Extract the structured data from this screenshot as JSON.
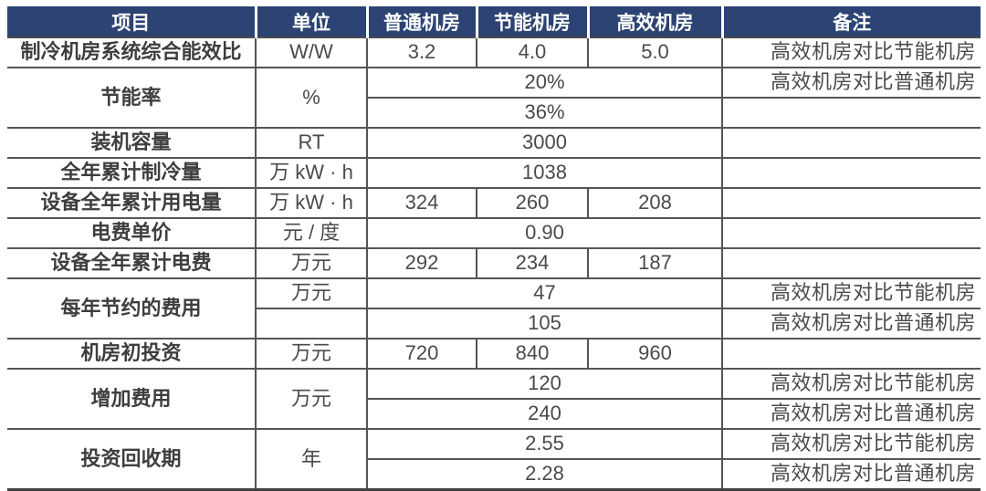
{
  "colors": {
    "header_bg": "#2c4373",
    "header_text": "#ffffff",
    "body_text": "#4a4a4a",
    "border": "#555555"
  },
  "table": {
    "columns": [
      "项目",
      "单位",
      "普通机房",
      "节能机房",
      "高效机房",
      "备注"
    ],
    "groups": [
      {
        "item": "制冷机房系统综合能效比",
        "unit": "W/W",
        "values": [
          "3.2",
          "4.0",
          "5.0"
        ],
        "remark": "高效机房对比节能机房"
      },
      {
        "item": "节能率",
        "unit": "%",
        "subrows": [
          {
            "value": "20%",
            "remark": "高效机房对比普通机房"
          },
          {
            "value": "36%",
            "remark": ""
          }
        ]
      },
      {
        "item": "装机容量",
        "unit": "RT",
        "value": "3000",
        "remark": ""
      },
      {
        "item": "全年累计制冷量",
        "unit": "万 kW · h",
        "value": "1038",
        "remark": ""
      },
      {
        "item": "设备全年累计用电量",
        "unit": "万 kW · h",
        "values": [
          "324",
          "260",
          "208"
        ],
        "remark": ""
      },
      {
        "item": "电费单价",
        "unit": "元 / 度",
        "value": "0.90",
        "remark": ""
      },
      {
        "item": "设备全年累计电费",
        "unit": "万元",
        "values": [
          "292",
          "234",
          "187"
        ],
        "remark": ""
      },
      {
        "item": "每年节约的费用",
        "subrows": [
          {
            "unit": "万元",
            "value": "47",
            "remark": "高效机房对比节能机房"
          },
          {
            "unit": "",
            "value": "105",
            "remark": "高效机房对比普通机房"
          }
        ]
      },
      {
        "item": "机房初投资",
        "unit": "万元",
        "values": [
          "720",
          "840",
          "960"
        ],
        "remark": ""
      },
      {
        "item": "增加费用",
        "unit": "万元",
        "subrows": [
          {
            "value": "120",
            "remark": "高效机房对比节能机房"
          },
          {
            "value": "240",
            "remark": "高效机房对比普通机房"
          }
        ]
      },
      {
        "item": "投资回收期",
        "unit": "年",
        "subrows": [
          {
            "value": "2.55",
            "remark": "高效机房对比节能机房"
          },
          {
            "value": "2.28",
            "remark": "高效机房对比普通机房"
          }
        ]
      }
    ]
  }
}
